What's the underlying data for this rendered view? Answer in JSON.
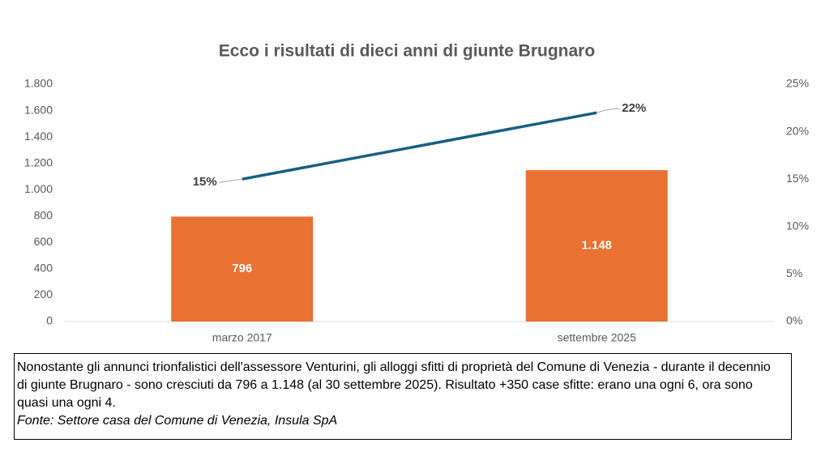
{
  "chart_data": {
    "type": "bar",
    "title": "Ecco i risultati di dieci anni di giunte Brugnaro",
    "categories": [
      "marzo 2017",
      "settembre 2025"
    ],
    "series": [
      {
        "type": "bar",
        "color": "#e97132",
        "values": [
          796,
          1148
        ],
        "value_labels": [
          "796",
          "1.148"
        ]
      },
      {
        "type": "line",
        "axis": "y2",
        "color": "#156082",
        "values": [
          15,
          22
        ],
        "value_labels": [
          "15%",
          "22%"
        ]
      }
    ],
    "ylim": [
      0,
      1800
    ],
    "yticks": [
      0,
      200,
      400,
      600,
      800,
      {
        "value": 1000,
        "label": "1.000"
      },
      {
        "value": 1200,
        "label": "1.200"
      },
      {
        "value": 1400,
        "label": "1.400"
      },
      {
        "value": 1600,
        "label": "1.600"
      },
      {
        "value": 1800,
        "label": "1.800"
      }
    ],
    "y2lim": [
      0,
      25
    ],
    "y2ticks": [
      {
        "value": 0,
        "label": "0%"
      },
      {
        "value": 5,
        "label": "5%"
      },
      {
        "value": 10,
        "label": "10%"
      },
      {
        "value": 15,
        "label": "15%"
      },
      {
        "value": 20,
        "label": "20%"
      },
      {
        "value": 25,
        "label": "25%"
      }
    ],
    "grid": false,
    "note": "Nonostante gli annunci trionfalistici dell'assessore Venturini, gli alloggi sfitti di proprietà del Comune di Venezia - durante il decennio di giunte Brugnaro - sono cresciuti da 796 a 1.148 (al 30 settembre 2025). Risultato +350 case sfitte: erano una ogni 6, ora sono quasi una ogni 4.",
    "source": "Fonte: Settore casa del Comune di Venezia, Insula SpA"
  }
}
